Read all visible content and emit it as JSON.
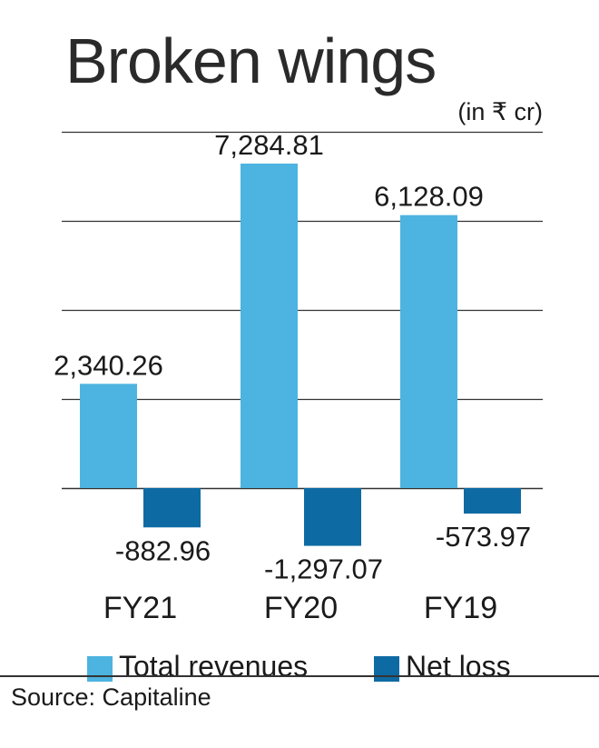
{
  "title": "Broken wings",
  "unit_note": "(in ₹ cr)",
  "source": "Source: Capitaline",
  "colors": {
    "revenue": "#4db3e0",
    "loss": "#0e6aa3",
    "grid": "#333333"
  },
  "chart_data": {
    "type": "bar",
    "title": "Broken wings",
    "categories": [
      "FY21",
      "FY20",
      "FY19"
    ],
    "series": [
      {
        "name": "Total revenues",
        "values": [
          2340.26,
          7284.81,
          6128.09
        ],
        "labels": [
          "2,340.26",
          "7,284.81",
          "6,128.09"
        ]
      },
      {
        "name": "Net loss",
        "values": [
          -882.96,
          -1297.07,
          -573.97
        ],
        "labels": [
          "-882.96",
          "-1,297.07",
          "-573.97"
        ]
      }
    ],
    "ylim": [
      -1500,
      8000
    ],
    "grid": true,
    "legend": "bottom"
  }
}
